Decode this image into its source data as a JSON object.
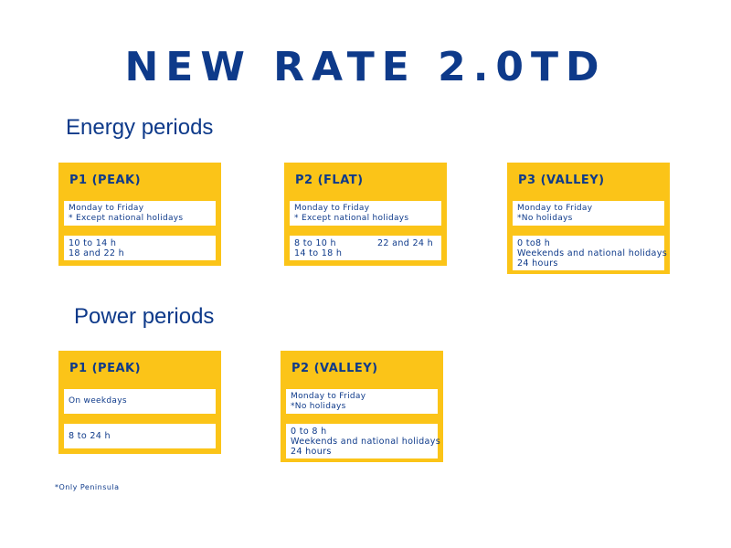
{
  "title": "NEW RATE 2.0TD",
  "energy": {
    "heading": "Energy periods",
    "p1": {
      "title": "P1 (PEAK)",
      "days": [
        "Monday to Friday",
        "* Except national holidays"
      ],
      "hours": [
        "10 to 14 h",
        "18 and 22 h"
      ]
    },
    "p2": {
      "title": "P2 (FLAT)",
      "days": [
        "Monday to Friday",
        "* Except national holidays"
      ],
      "hours_left": [
        "8 to 10 h",
        "14 to 18 h"
      ],
      "hours_right": "22 and 24 h"
    },
    "p3": {
      "title": "P3 (VALLEY)",
      "days": [
        "Monday to Friday",
        "*No holidays"
      ],
      "hours": [
        "0 to8 h",
        "Weekends and national holidays",
        "24 hours"
      ]
    }
  },
  "power": {
    "heading": "Power periods",
    "p1": {
      "title": "P1 (PEAK)",
      "days": "On weekdays",
      "hours": "8 to 24 h"
    },
    "p2": {
      "title": "P2 (VALLEY)",
      "days": [
        "Monday to Friday",
        "*No holidays"
      ],
      "hours": [
        "0 to 8 h",
        "Weekends and national holidays",
        "24 hours"
      ]
    }
  },
  "footnote": "*Only Peninsula",
  "colors": {
    "accent": "#fbc418",
    "text": "#0e3a8a",
    "box": "#ffffff"
  }
}
